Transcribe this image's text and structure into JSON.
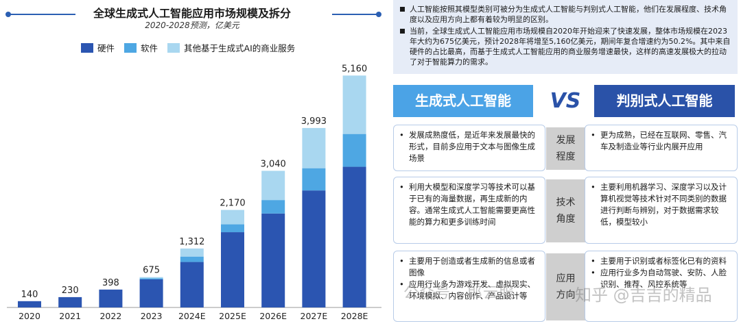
{
  "chart_data": {
    "type": "bar",
    "stacked": true,
    "title": "全球生成式人工智能应用市场规模及拆分",
    "subtitle": "2020-2028预测，亿美元",
    "categories": [
      "2020",
      "2021",
      "2022",
      "2023",
      "2024E",
      "2025E",
      "2026E",
      "2027E",
      "2028E"
    ],
    "totals": [
      140,
      230,
      398,
      675,
      1312,
      2170,
      3040,
      3993,
      5160
    ],
    "total_labels": [
      "140",
      "230",
      "398",
      "675",
      "1,312",
      "2,170",
      "3,040",
      "3,993",
      "5,160"
    ],
    "series": [
      {
        "name": "硬件",
        "color": "#2b55b1",
        "values": [
          140,
          230,
          398,
          625,
          1012,
          1675,
          2090,
          2603,
          3130
        ]
      },
      {
        "name": "软件",
        "color": "#4ea7e3",
        "values": [
          0,
          0,
          0,
          25,
          120,
          175,
          300,
          495,
          730
        ]
      },
      {
        "name": "其他基于生成式AI的商业服务",
        "color": "#a9d7f0",
        "values": [
          0,
          0,
          0,
          25,
          180,
          320,
          650,
          895,
          1300
        ]
      }
    ],
    "ylim": [
      0,
      5500
    ],
    "grid": false,
    "legend": "top"
  },
  "notes": [
    "人工智能按照其模型类别可被分为生成式人工智能与判别式人工智能，他们在发展程度、技术角度以及应用方向上都有着较为明显的区别。",
    "当前，全球生成式人工智能应用市场规模自2020年开始迎来了快速发展，整体市场规模在2023年大约为675亿美元，预计2028年将增至5,160亿美元，期间年复合增速约为50.2%。其中来自硬件的占比最高，而基于生成式人工智能应用的商业服务增速最快，这样的高速发展极大的拉动了对于智能算力的需求。"
  ],
  "comparison": {
    "left_title": "生成式人工智能",
    "vs": "VS",
    "right_title": "判别式人工智能",
    "rows": [
      {
        "label": "发展程度",
        "left": [
          "发展成熟度低，是近年来发展最快的形式，目前多应用于文本与图像生成场景"
        ],
        "right": [
          "更为成熟，已经在互联网、零售、汽车及制造业等行业内展开应用"
        ]
      },
      {
        "label": "技术角度",
        "left": [
          "利用大模型和深度学习等技术可以基于已有的海量数据，再生成新的内容。通常生成式人工智能需要更高性能的算力和更多训练时间"
        ],
        "right": [
          "主要利用机器学习、深度学习以及计算机视觉等技术针对不同类别的数据进行判断与辨别，对于数据需求较低，模型较小"
        ]
      },
      {
        "label": "应用方向",
        "left": [
          "主要用于创造或者生成新的信息或者图像",
          "应用行业多为游戏开发、虚拟现实、环境模拟、内容创作、产品设计等"
        ],
        "right": [
          "主要用于识别或者标签化已有的资料",
          "应用行业多为自动驾驶、安防、人脸识别、推荐、风控系统等"
        ]
      }
    ]
  },
  "watermark": "公众号 · 郎云服",
  "watermark2": "知乎 @吉吉的精品"
}
